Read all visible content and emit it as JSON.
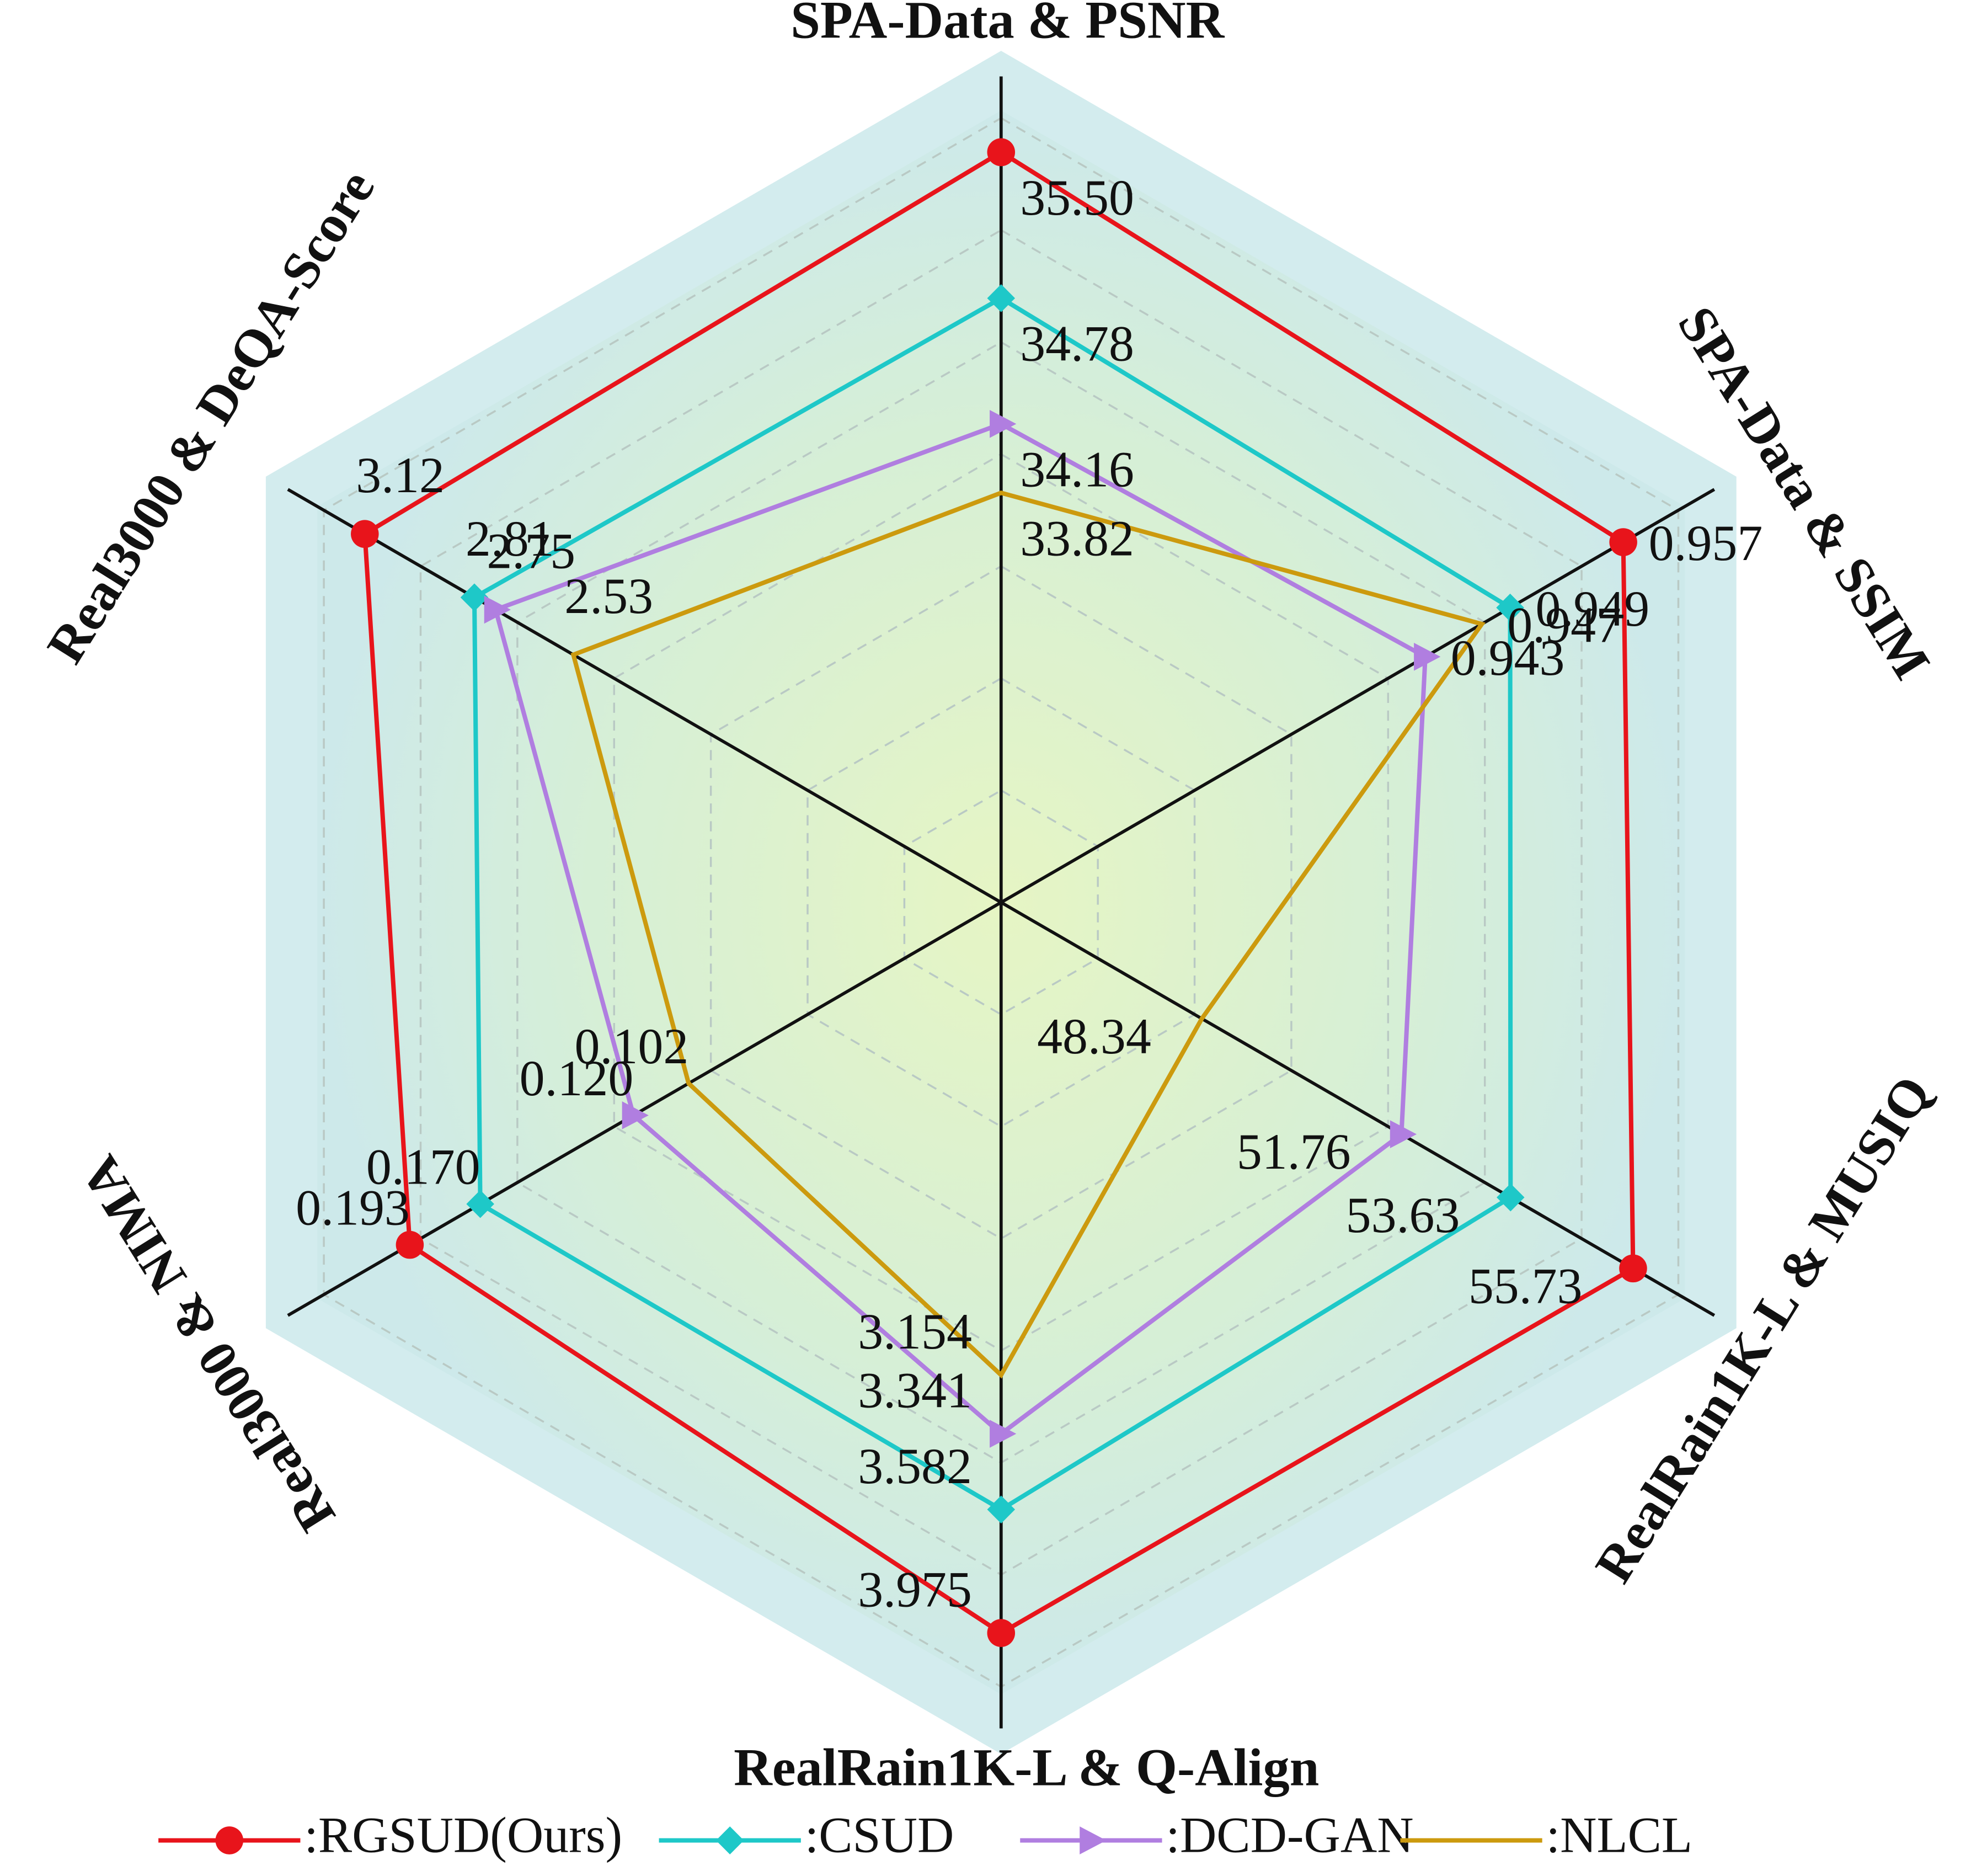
{
  "chart_data": {
    "type": "radar",
    "axes": [
      {
        "label": "SPA-Data & PSNR",
        "range": [
          31.8,
          36.0
        ]
      },
      {
        "label": "SPA-Data & SSIM",
        "range": [
          0.913,
          0.965
        ]
      },
      {
        "label": "RealRain1K-L & MUSIQ",
        "range": [
          44.9,
          57.5
        ]
      },
      {
        "label": "RealRain1K-L & Q-Align",
        "range": [
          1.65,
          4.36
        ]
      },
      {
        "label": "Real3000 & NIMA",
        "range": [
          0,
          0.24
        ]
      },
      {
        "label": "Real3000 & DeQA-Score",
        "range": [
          1.32,
          3.4
        ]
      }
    ],
    "series": [
      {
        "name": ":RGSUD(Ours)",
        "color": "#e8141b",
        "marker": "circle",
        "values": [
          35.5,
          0.957,
          55.73,
          3.975,
          0.193,
          3.12
        ],
        "value_labels": [
          "35.50",
          "0.957",
          "55.73",
          "3.975",
          "0.193",
          "3.12"
        ]
      },
      {
        "name": ":CSUD",
        "color": "#1ec8c8",
        "marker": "diamond",
        "values": [
          34.78,
          0.949,
          53.63,
          3.582,
          0.17,
          2.81
        ],
        "value_labels": [
          "34.78",
          "0.949",
          "53.63",
          "3.582",
          "0.170",
          "2.81"
        ]
      },
      {
        "name": ":DCD-GAN",
        "color": "#b07ee0",
        "marker": "triangle",
        "values": [
          34.16,
          0.943,
          51.76,
          3.341,
          0.12,
          2.75
        ],
        "value_labels": [
          "34.16",
          "0.943",
          "51.76",
          "3.341",
          "0.120",
          "2.75"
        ]
      },
      {
        "name": ":NLCL",
        "color": "#cc9a0e",
        "marker": "none",
        "values": [
          33.82,
          0.947,
          48.34,
          3.154,
          0.102,
          2.53
        ],
        "value_labels": [
          "33.82",
          "0.947",
          "48.34",
          "3.154",
          "0.102",
          "2.53"
        ]
      }
    ]
  }
}
